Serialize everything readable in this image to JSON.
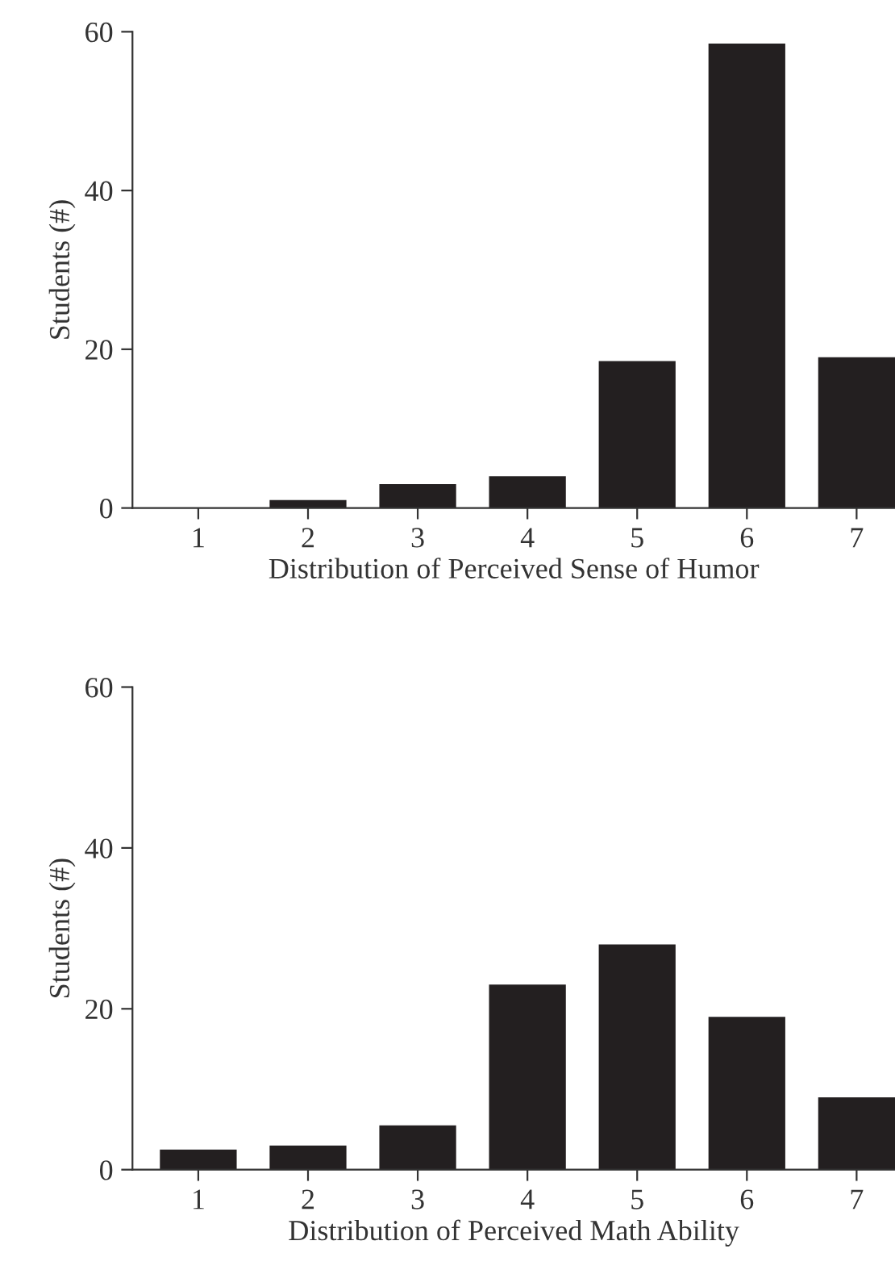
{
  "chart_data": [
    {
      "type": "bar",
      "categories": [
        "1",
        "2",
        "3",
        "4",
        "5",
        "6",
        "7"
      ],
      "values": [
        0,
        1,
        3,
        4,
        18.5,
        58.5,
        19
      ],
      "color": "#231f20",
      "xlabel": "Distribution of Perceived Sense of Humor",
      "ylabel": "Students (#)",
      "ylim": [
        0,
        60
      ],
      "yticks": [
        0,
        20,
        40,
        60
      ],
      "grid": false,
      "legend": false
    },
    {
      "type": "bar",
      "categories": [
        "1",
        "2",
        "3",
        "4",
        "5",
        "6",
        "7"
      ],
      "values": [
        2.5,
        3,
        5.5,
        23,
        28,
        19,
        9
      ],
      "color": "#231f20",
      "xlabel": "Distribution of Perceived Math Ability",
      "ylabel": "Students (#)",
      "ylim": [
        0,
        60
      ],
      "yticks": [
        0,
        20,
        40,
        60
      ],
      "grid": false,
      "legend": false
    }
  ]
}
